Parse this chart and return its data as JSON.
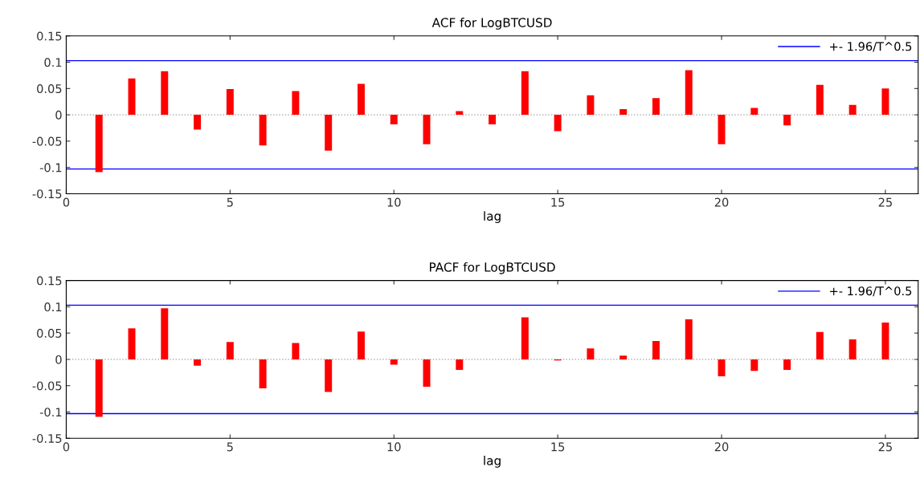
{
  "chart_data": [
    {
      "type": "bar",
      "title": "ACF for LogBTCUSD",
      "xlabel": "lag",
      "x": [
        1,
        2,
        3,
        4,
        5,
        6,
        7,
        8,
        9,
        10,
        11,
        12,
        13,
        14,
        15,
        16,
        17,
        18,
        19,
        20,
        21,
        22,
        23,
        24,
        25
      ],
      "series": [
        {
          "color": "#ff0000",
          "values": [
            -0.109,
            0.069,
            0.083,
            -0.028,
            0.049,
            -0.058,
            0.045,
            -0.068,
            0.059,
            -0.018,
            -0.056,
            0.007,
            -0.018,
            0.083,
            -0.031,
            0.037,
            0.011,
            0.032,
            0.085,
            -0.056,
            0.013,
            -0.02,
            0.057,
            0.019,
            0.05
          ]
        }
      ],
      "xlim": [
        0,
        26
      ],
      "xticks": [
        0,
        5,
        10,
        15,
        20,
        25
      ],
      "ylim": [
        -0.15,
        0.15
      ],
      "yticks": [
        -0.15,
        -0.1,
        -0.05,
        0,
        0.05,
        0.1,
        0.15
      ],
      "ref_lines": [
        {
          "axis": "y",
          "value": 0.103,
          "label": "+- 1.96/T^0.5",
          "color": "#0000ff",
          "line_style": "solid"
        },
        {
          "axis": "y",
          "value": -0.103,
          "label": null,
          "color": "#0000ff",
          "line_style": "solid"
        },
        {
          "axis": "y",
          "value": 0,
          "label": null,
          "color": "#a0a0a0",
          "line_style": "dotted"
        }
      ],
      "legend": "top right"
    },
    {
      "type": "bar",
      "title": "PACF for LogBTCUSD",
      "xlabel": "lag",
      "x": [
        1,
        2,
        3,
        4,
        5,
        6,
        7,
        8,
        9,
        10,
        11,
        12,
        13,
        14,
        15,
        16,
        17,
        18,
        19,
        20,
        21,
        22,
        23,
        24,
        25
      ],
      "series": [
        {
          "color": "#ff0000",
          "values": [
            -0.109,
            0.059,
            0.097,
            -0.012,
            0.033,
            -0.055,
            0.031,
            -0.062,
            0.053,
            -0.01,
            -0.052,
            -0.02,
            0.0,
            0.08,
            -0.002,
            0.021,
            0.007,
            0.035,
            0.076,
            -0.032,
            -0.022,
            -0.02,
            0.052,
            0.038,
            0.07
          ]
        }
      ],
      "xlim": [
        0,
        26
      ],
      "xticks": [
        0,
        5,
        10,
        15,
        20,
        25
      ],
      "ylim": [
        -0.15,
        0.15
      ],
      "yticks": [
        -0.15,
        -0.1,
        -0.05,
        0,
        0.05,
        0.1,
        0.15
      ],
      "ref_lines": [
        {
          "axis": "y",
          "value": 0.103,
          "label": "+- 1.96/T^0.5",
          "color": "#0000ff",
          "line_style": "solid"
        },
        {
          "axis": "y",
          "value": -0.103,
          "label": null,
          "color": "#0000ff",
          "line_style": "solid"
        },
        {
          "axis": "y",
          "value": 0,
          "label": null,
          "color": "#a0a0a0",
          "line_style": "dotted"
        }
      ],
      "legend": "top right"
    }
  ]
}
